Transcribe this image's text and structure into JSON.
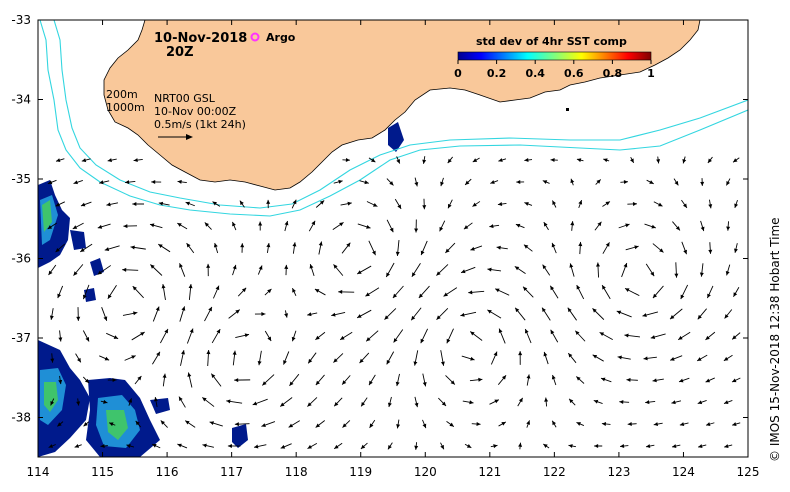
{
  "map": {
    "date": "10-Nov-2018",
    "time": "20Z",
    "argo_label": "Argo",
    "colorbar_title": "std dev of 4hr SST comp",
    "colorbar_ticks": [
      "0",
      "0.2",
      "0.4",
      "0.6",
      "0.8",
      "1"
    ],
    "contour_200": "200m",
    "contour_1000": "1000m",
    "product": "NRT00 GSL",
    "analysis_time": "10-Nov 00:00Z",
    "scale_label": "0.5m/s (1kt 24h)",
    "credit": "© IMOS 15-Nov-2018 12:38 Hobart Time",
    "lon_ticks": [
      "114",
      "115",
      "116",
      "117",
      "118",
      "119",
      "120",
      "121",
      "122",
      "123",
      "124",
      "125"
    ],
    "lat_ticks": [
      "-33",
      "-34",
      "-35",
      "-36",
      "-37",
      "-38"
    ],
    "colors": {
      "land": "#f9c89a",
      "isobath": "#33d6e0",
      "argo": "#ff33ff",
      "sst_dark": "#001a8c",
      "sst_mid": "#1f8fd6",
      "sst_light": "#3fc46c"
    }
  }
}
